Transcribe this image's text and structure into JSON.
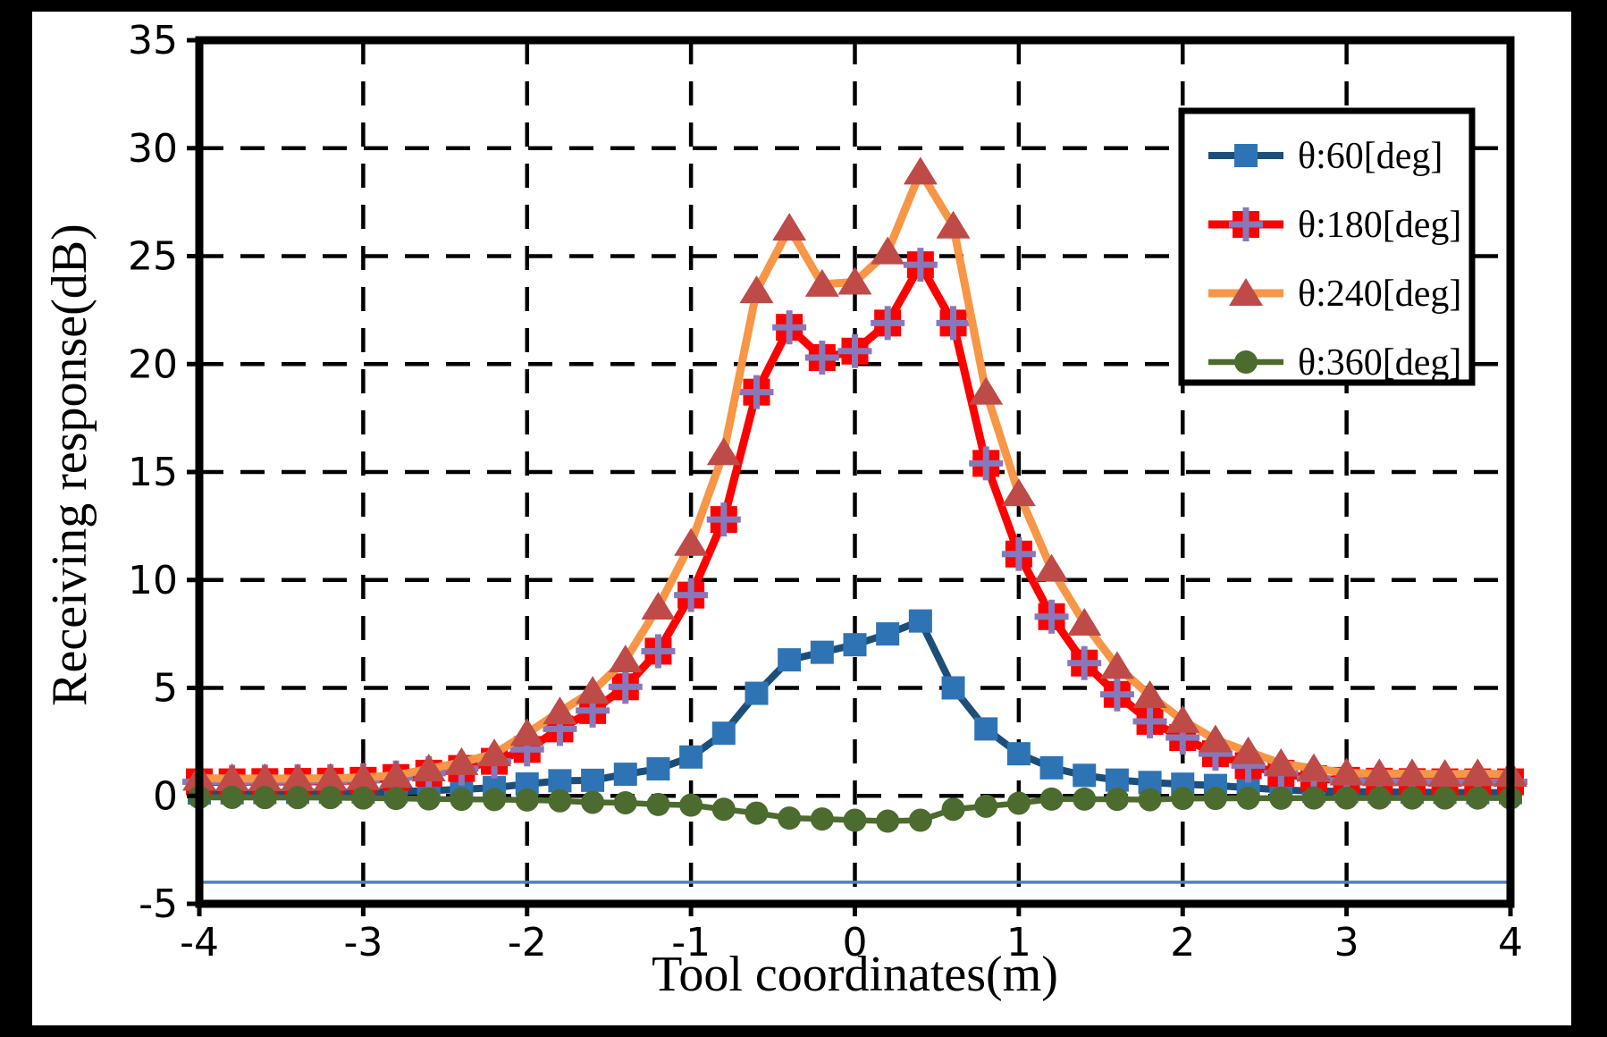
{
  "figure": {
    "background_color": "#000000",
    "plot_background_color": "#ffffff"
  },
  "chart_data": {
    "type": "line",
    "title": "",
    "xlabel": "Tool coordinates(m)",
    "ylabel": "Receiving response(dB)",
    "xlim": [
      -4,
      4
    ],
    "ylim": [
      -5,
      35
    ],
    "x_ticks": [
      -4,
      -3,
      -2,
      -1,
      0,
      1,
      2,
      3,
      4
    ],
    "y_ticks": [
      -5,
      0,
      5,
      10,
      15,
      20,
      25,
      30,
      35
    ],
    "grid": "dashed-black",
    "legend_position": "top-right-inside",
    "x": [
      -4,
      -3.8,
      -3.6,
      -3.4,
      -3.2,
      -3,
      -2.8,
      -2.6,
      -2.4,
      -2.2,
      -2,
      -1.8,
      -1.6,
      -1.4,
      -1.2,
      -1,
      -0.8,
      -0.6,
      -0.4,
      -0.2,
      0,
      0.2,
      0.4,
      0.6,
      0.8,
      1,
      1.2,
      1.4,
      1.6,
      1.8,
      2,
      2.2,
      2.4,
      2.6,
      2.8,
      3,
      3.2,
      3.4,
      3.6,
      3.8,
      4
    ],
    "series": [
      {
        "name": "θ:60[deg]",
        "marker": "square",
        "line_color": "#1D4E79",
        "marker_color": "#2E74B5",
        "values": [
          0.13,
          0.14,
          0.15,
          0.16,
          0.17,
          0.18,
          0.2,
          0.24,
          0.3,
          0.38,
          0.55,
          0.7,
          0.72,
          1.0,
          1.25,
          1.8,
          2.9,
          4.75,
          6.3,
          6.65,
          7.0,
          7.5,
          8.1,
          5.0,
          3.1,
          1.95,
          1.3,
          0.95,
          0.73,
          0.62,
          0.54,
          0.48,
          0.38,
          0.28,
          0.22,
          0.2,
          0.18,
          0.17,
          0.16,
          0.15,
          0.15
        ]
      },
      {
        "name": "θ:180[deg]",
        "marker": "square-plus",
        "line_color": "#FE0000",
        "marker_color": "#FE0000",
        "plus_color": "#8878B9",
        "values": [
          0.65,
          0.65,
          0.66,
          0.67,
          0.68,
          0.72,
          0.85,
          1.05,
          1.27,
          1.6,
          2.15,
          3.1,
          3.95,
          5.05,
          6.7,
          9.3,
          12.8,
          18.7,
          21.7,
          20.3,
          20.6,
          21.9,
          24.6,
          21.9,
          15.4,
          11.2,
          8.3,
          6.15,
          4.7,
          3.45,
          2.7,
          1.95,
          1.4,
          1.05,
          0.8,
          0.72,
          0.68,
          0.66,
          0.65,
          0.65,
          0.65
        ]
      },
      {
        "name": "θ:240[deg]",
        "marker": "triangle",
        "line_color": "#F79646",
        "marker_color": "#BE4B48",
        "values": [
          0.82,
          0.8,
          0.8,
          0.8,
          0.82,
          0.85,
          0.95,
          1.25,
          1.55,
          1.95,
          2.9,
          3.9,
          4.85,
          6.3,
          8.75,
          11.7,
          15.9,
          23.4,
          26.3,
          23.7,
          23.8,
          25.2,
          28.9,
          26.4,
          18.7,
          14.0,
          10.5,
          8.0,
          6.0,
          4.65,
          3.5,
          2.6,
          2.05,
          1.5,
          1.27,
          1.06,
          1.03,
          1.03,
          1.0,
          1.03,
          1.0
        ]
      },
      {
        "name": "θ:360[deg]",
        "marker": "circle",
        "line_color": "#4C6B2F",
        "marker_color": "#4C6B2F",
        "values": [
          -0.07,
          -0.07,
          -0.08,
          -0.08,
          -0.08,
          -0.1,
          -0.12,
          -0.14,
          -0.16,
          -0.17,
          -0.19,
          -0.23,
          -0.3,
          -0.32,
          -0.4,
          -0.43,
          -0.62,
          -0.8,
          -1.03,
          -1.07,
          -1.13,
          -1.17,
          -1.13,
          -0.62,
          -0.48,
          -0.34,
          -0.15,
          -0.15,
          -0.16,
          -0.18,
          -0.12,
          -0.12,
          -0.11,
          -0.11,
          -0.1,
          -0.1,
          -0.1,
          -0.1,
          -0.1,
          -0.1,
          -0.1
        ]
      }
    ],
    "baseline": {
      "y": -4,
      "color": "#4F81BD"
    }
  }
}
